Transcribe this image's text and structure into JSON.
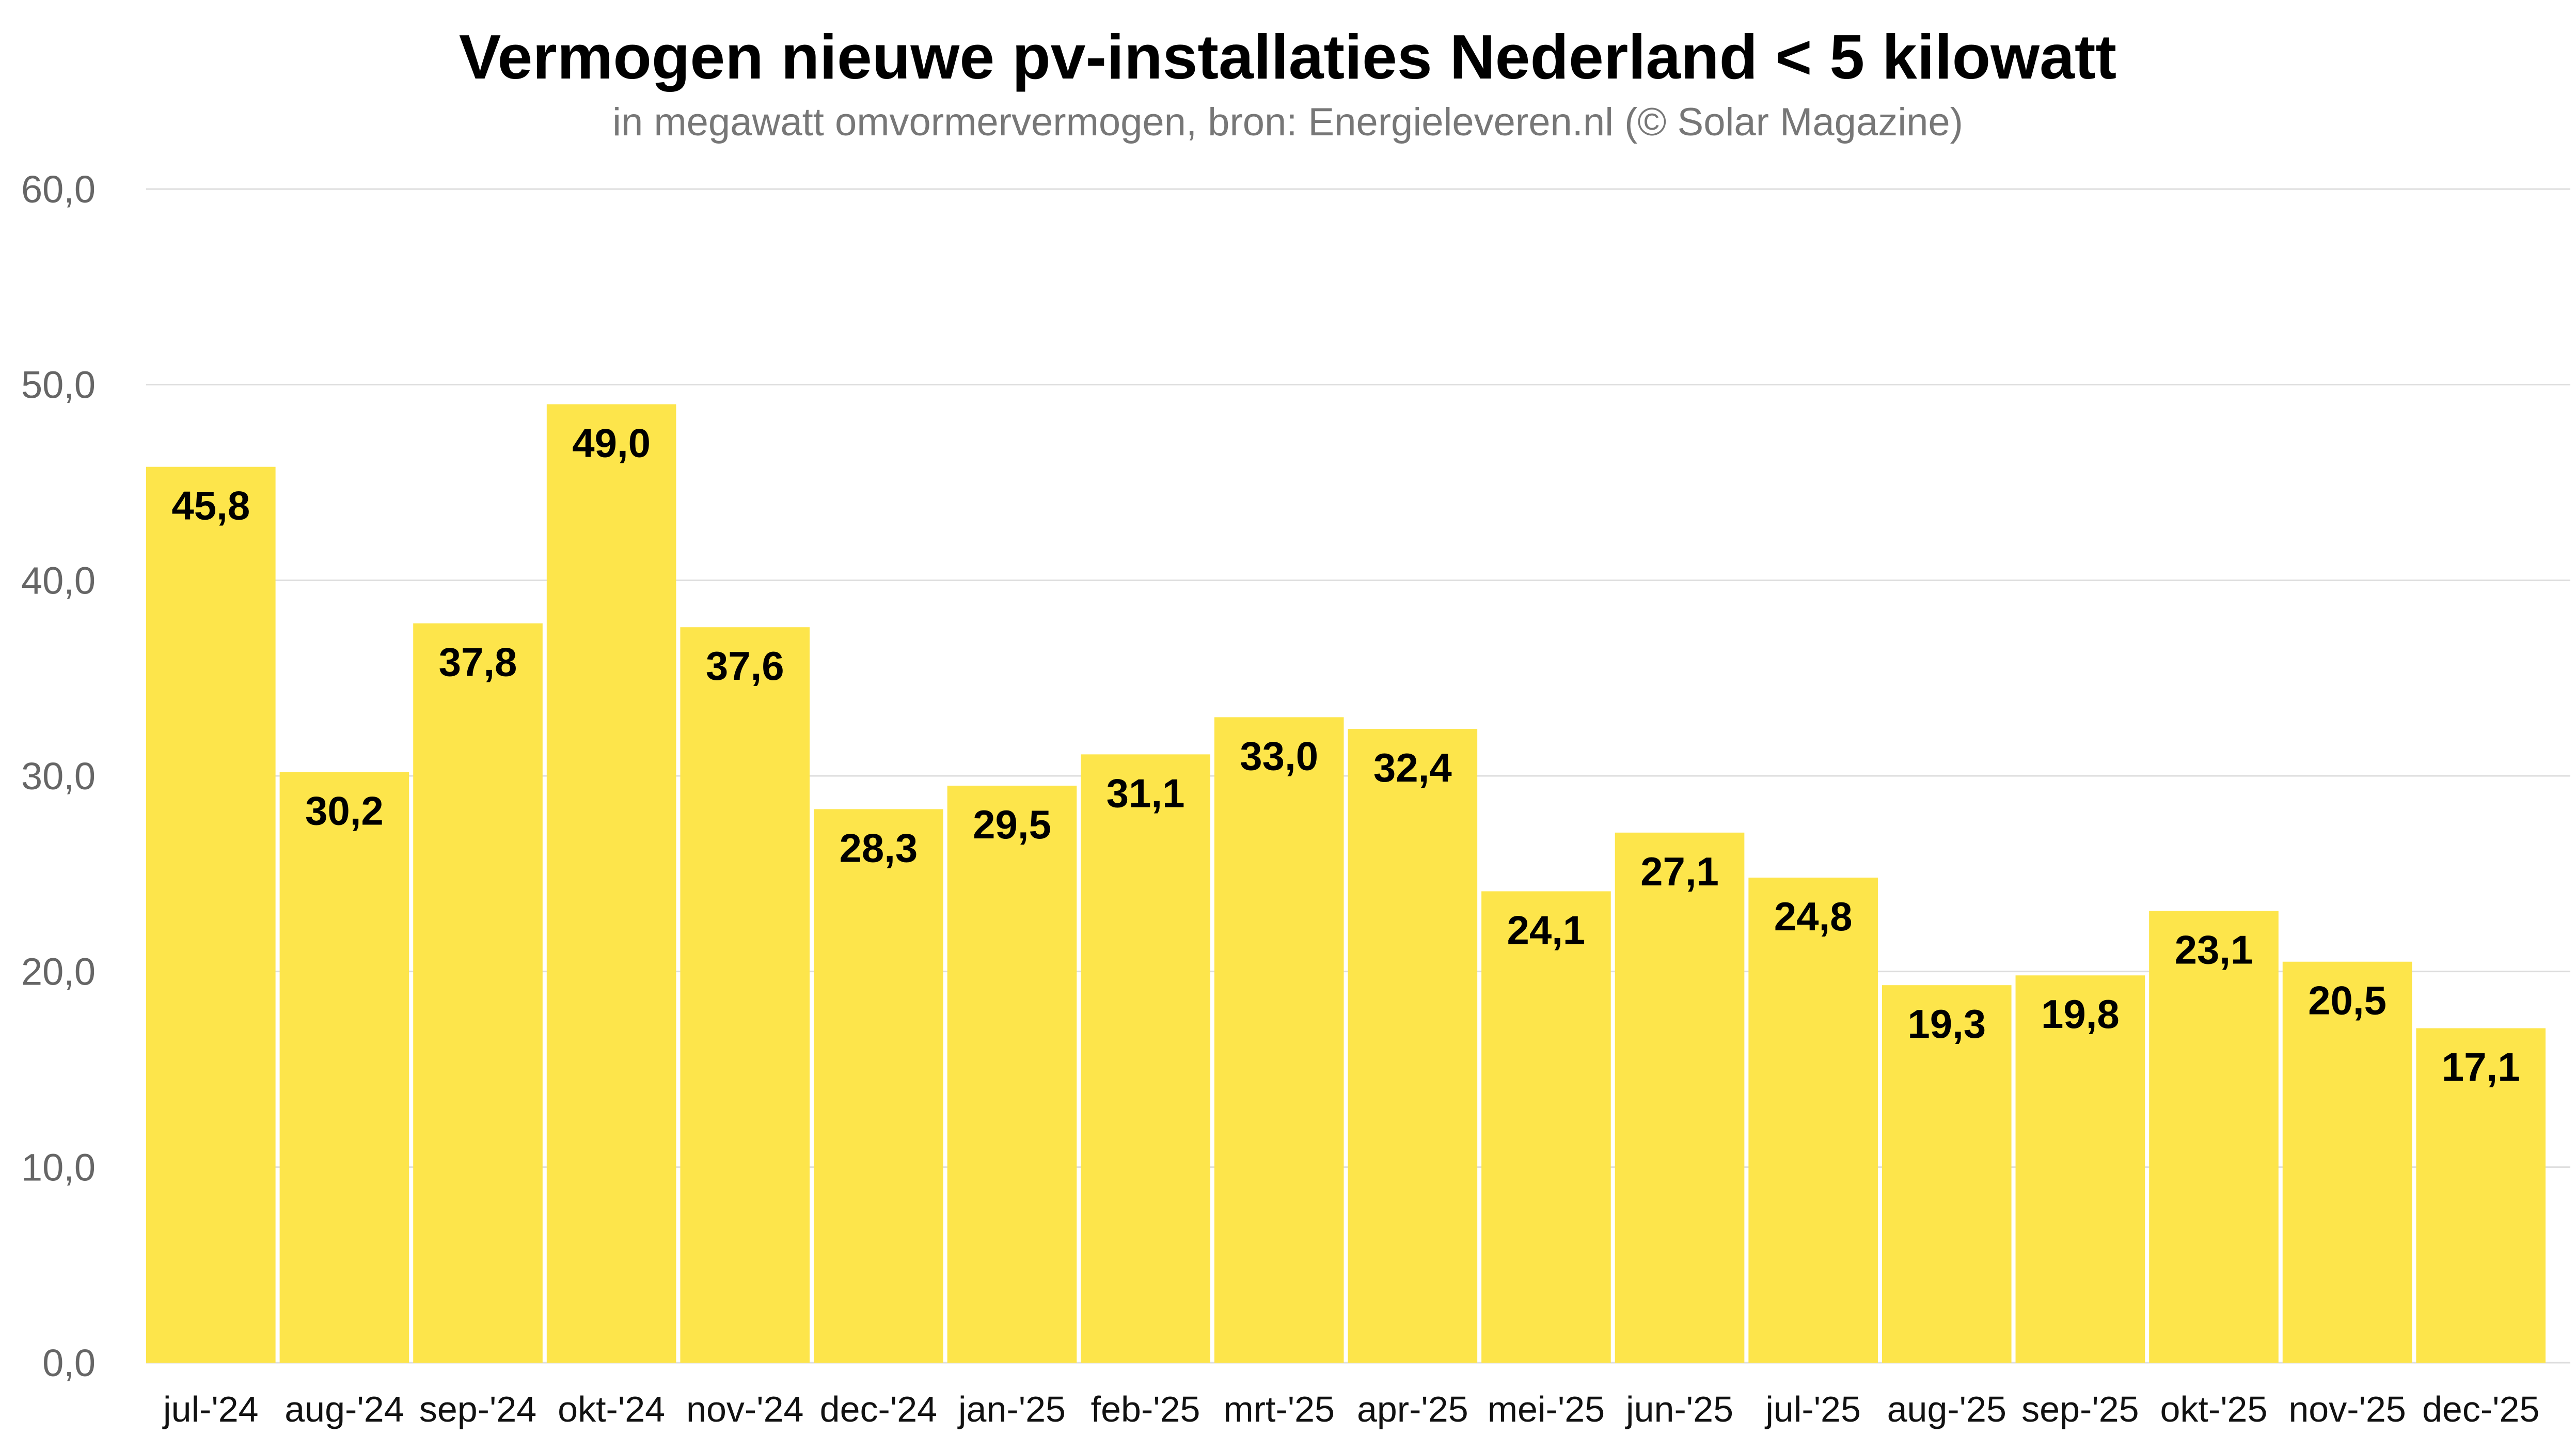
{
  "chart_data": {
    "type": "bar",
    "title": "Vermogen nieuwe pv-installaties Nederland < 5 kilowatt",
    "subtitle": "in megawatt omvormervermogen, bron: Energieleveren.nl (© Solar Magazine)",
    "xlabel": "",
    "ylabel": "",
    "ylim": [
      0,
      60
    ],
    "yticks": [
      0,
      10,
      20,
      30,
      40,
      50,
      60
    ],
    "ytick_labels": [
      "0,0",
      "10,0",
      "20,0",
      "30,0",
      "40,0",
      "50,0",
      "60,0"
    ],
    "grid": true,
    "bar_color": "#FDE54B",
    "categories": [
      "jul-'24",
      "aug-'24",
      "sep-'24",
      "okt-'24",
      "nov-'24",
      "dec-'24",
      "jan-'25",
      "feb-'25",
      "mrt-'25",
      "apr-'25",
      "mei-'25",
      "jun-'25",
      "jul-'25",
      "aug-'25",
      "sep-'25",
      "okt-'25",
      "nov-'25",
      "dec-'25"
    ],
    "values": [
      45.8,
      30.2,
      37.8,
      49.0,
      37.6,
      28.3,
      29.5,
      31.1,
      33.0,
      32.4,
      24.1,
      27.1,
      24.8,
      19.3,
      19.8,
      23.1,
      20.5,
      17.1
    ],
    "data_labels": [
      "45,8",
      "30,2",
      "37,8",
      "49,0",
      "37,6",
      "28,3",
      "29,5",
      "31,1",
      "33,0",
      "32,4",
      "24,1",
      "27,1",
      "24,8",
      "19,3",
      "19,8",
      "23,1",
      "20,5",
      "17,1"
    ]
  }
}
